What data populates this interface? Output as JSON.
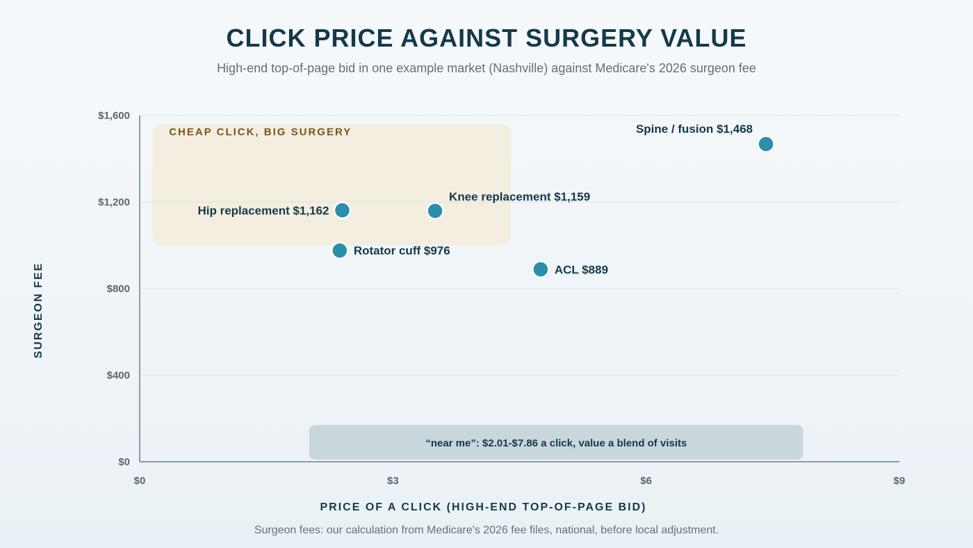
{
  "chart_data": {
    "type": "scatter",
    "title": "CLICK PRICE AGAINST SURGERY VALUE",
    "subtitle": "High-end top-of-page bid in one example market (Nashville) against Medicare's 2026 surgeon fee",
    "xlabel": "PRICE OF A CLICK (HIGH-END TOP-OF-PAGE BID)",
    "ylabel": "SURGEON FEE",
    "xlim": [
      0,
      9
    ],
    "ylim": [
      0,
      1600
    ],
    "x_ticks": [
      {
        "value": 0,
        "label": "$0"
      },
      {
        "value": 3,
        "label": "$3"
      },
      {
        "value": 6,
        "label": "$6"
      },
      {
        "value": 9,
        "label": "$9"
      }
    ],
    "y_ticks": [
      {
        "value": 0,
        "label": "$0"
      },
      {
        "value": 400,
        "label": "$400"
      },
      {
        "value": 800,
        "label": "$800"
      },
      {
        "value": 1200,
        "label": "$1,200"
      },
      {
        "value": 1600,
        "label": "$1,600"
      }
    ],
    "grid": "horizontal",
    "points": [
      {
        "name": "Hip replacement",
        "x": 2.4,
        "y": 1162,
        "label": "Hip replacement $1,162",
        "label_side": "left"
      },
      {
        "name": "Knee replacement",
        "x": 3.5,
        "y": 1159,
        "label": "Knee replacement $1,159",
        "label_side": "upper-right"
      },
      {
        "name": "Rotator cuff",
        "x": 2.37,
        "y": 976,
        "label": "Rotator cuff $976",
        "label_side": "right"
      },
      {
        "name": "ACL",
        "x": 4.75,
        "y": 889,
        "label": "ACL $889",
        "label_side": "right"
      },
      {
        "name": "Spine / fusion",
        "x": 7.42,
        "y": 1468,
        "label": "Spine / fusion $1,468",
        "label_side": "upper-left"
      }
    ],
    "highlight_zone": {
      "label": "CHEAP CLICK, BIG SURGERY",
      "x_range": [
        0.15,
        4.4
      ],
      "y_range": [
        1000,
        1560
      ],
      "color": "#f3eedf"
    },
    "range_note": {
      "label": "“near me”: $2.01-$7.86 a click, value a blend of visits",
      "x_range": [
        2.01,
        7.86
      ],
      "y_range": [
        10,
        170
      ],
      "color": "#c9d6dc"
    },
    "colors": {
      "point": "#2a8fa8",
      "axis": "#8b9aa3",
      "grid": "#dbe4ea"
    }
  },
  "source_note": "Surgeon fees: our calculation from Medicare's 2026 fee files, national, before local adjustment."
}
